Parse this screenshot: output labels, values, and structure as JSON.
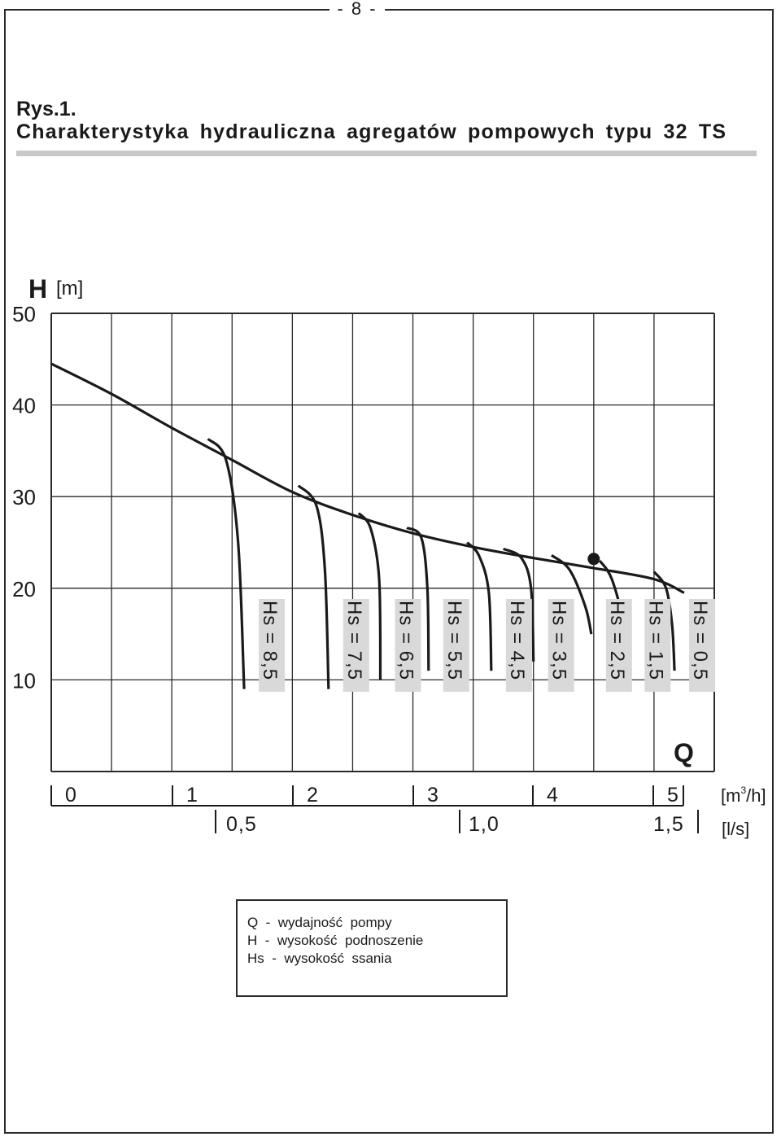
{
  "page": {
    "number": "- 8 -"
  },
  "figure": {
    "label": "Rys.1.",
    "title": "Charakterystyka hydrauliczna agregatów pompowych typu 32 TS"
  },
  "legend": {
    "lines": [
      "Q  -  wydajność  pompy",
      "H  -  wysokość  podnoszenie",
      "Hs  -  wysokość  ssania"
    ]
  },
  "chart_data": {
    "type": "line",
    "y_axis": {
      "symbol": "H",
      "unit": "[m]",
      "ticks": [
        "50",
        "40",
        "30",
        "20",
        "10"
      ],
      "ylim": [
        0,
        50
      ]
    },
    "x_axis": {
      "symbol": "Q",
      "primary_unit": "[m³/h]",
      "primary_unit_base": "[m",
      "primary_unit_sup": "3",
      "primary_unit_end": "/h]",
      "primary_ticks": [
        "0",
        "1",
        "2",
        "3",
        "4",
        "5"
      ],
      "secondary_unit": "[l/s]",
      "secondary_ticks": [
        "0,5",
        "1,0",
        "1,5"
      ],
      "xlim": [
        0,
        5.5
      ]
    },
    "grid": true,
    "main_curve": {
      "x": [
        0,
        0.5,
        1,
        1.5,
        2,
        2.5,
        3,
        3.5,
        4,
        4.5,
        5,
        5.25
      ],
      "y": [
        44.5,
        41.2,
        37.5,
        34,
        30.5,
        28,
        26,
        24.5,
        23.3,
        22.2,
        21,
        19.5
      ]
    },
    "marked_point": {
      "x": 4.5,
      "y": 23.2
    },
    "branches": [
      {
        "label": "Hs = 8,5",
        "x": [
          1.3,
          1.45,
          1.55,
          1.6
        ],
        "y": [
          36.3,
          34,
          25,
          9
        ]
      },
      {
        "label": "Hs = 7,5",
        "x": [
          2.05,
          2.2,
          2.27,
          2.3
        ],
        "y": [
          31.2,
          29,
          22,
          9
        ]
      },
      {
        "label": "Hs = 6,5",
        "x": [
          2.55,
          2.65,
          2.72,
          2.73
        ],
        "y": [
          28.2,
          26.5,
          21,
          10
        ]
      },
      {
        "label": "Hs = 5,5",
        "x": [
          2.95,
          3.07,
          3.12,
          3.13
        ],
        "y": [
          26.6,
          25.5,
          20,
          11
        ]
      },
      {
        "label": "Hs = 4,5",
        "x": [
          3.45,
          3.55,
          3.63,
          3.65
        ],
        "y": [
          25,
          23.5,
          19.5,
          11
        ]
      },
      {
        "label": "Hs = 3,5",
        "x": [
          3.75,
          3.9,
          3.98,
          4.0
        ],
        "y": [
          24.3,
          23.3,
          20,
          12
        ]
      },
      {
        "label": "Hs = 2,5",
        "x": [
          4.15,
          4.3,
          4.43,
          4.48
        ],
        "y": [
          23.6,
          22,
          18,
          15
        ]
      },
      {
        "label": "Hs = 1,5",
        "x": [
          4.55,
          4.65,
          4.75,
          4.8
        ],
        "y": [
          23,
          21,
          16,
          10
        ]
      },
      {
        "label": "Hs = 0,5",
        "x": [
          5.0,
          5.1,
          5.15,
          5.17
        ],
        "y": [
          21.8,
          20,
          16,
          11
        ]
      }
    ]
  }
}
